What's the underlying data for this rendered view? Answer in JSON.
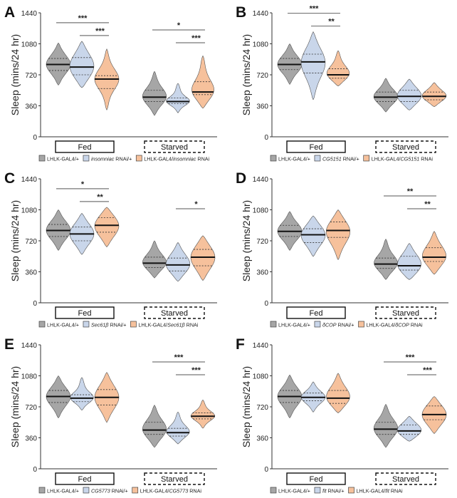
{
  "colors": {
    "control": "#a6a6a6",
    "rnai_ctrl": "#c9d6ea",
    "experimental": "#f6c19c",
    "axis": "#333333",
    "sig": "#777777"
  },
  "chart_data": [
    {
      "panel": "A",
      "type": "violin",
      "ylabel": "Sleep (mins/24 hr)",
      "ylim": [
        0,
        1440
      ],
      "yticks": [
        0,
        360,
        720,
        1080,
        1440
      ],
      "groups": [
        "Fed",
        "Starved"
      ],
      "legend": [
        {
          "text": "LHLK-GAL4/+"
        },
        {
          "italic": "insomniac",
          "text": " RNAi/+"
        },
        {
          "text": "LHLK-GAL4/",
          "italic": "insomniac",
          "post": " RNAi"
        }
      ],
      "violins": [
        {
          "group": "Fed",
          "series": 0,
          "median": 840,
          "q1": 770,
          "q3": 910,
          "min": 600,
          "max": 1090
        },
        {
          "group": "Fed",
          "series": 1,
          "median": 810,
          "q1": 720,
          "q3": 920,
          "min": 570,
          "max": 1110
        },
        {
          "group": "Fed",
          "series": 2,
          "median": 670,
          "q1": 560,
          "q3": 710,
          "min": 310,
          "max": 1020
        },
        {
          "group": "Starved",
          "series": 0,
          "median": 460,
          "q1": 410,
          "q3": 540,
          "min": 250,
          "max": 760
        },
        {
          "group": "Starved",
          "series": 1,
          "median": 410,
          "q1": 385,
          "q3": 450,
          "min": 280,
          "max": 620
        },
        {
          "group": "Starved",
          "series": 2,
          "median": 520,
          "q1": 490,
          "q3": 640,
          "min": 330,
          "max": 940
        }
      ],
      "significance": [
        {
          "group": "Fed",
          "from": 0,
          "to": 2,
          "label": "***"
        },
        {
          "group": "Fed",
          "from": 1,
          "to": 2,
          "label": "***"
        },
        {
          "group": "Starved",
          "from": 0,
          "to": 2,
          "label": "*"
        },
        {
          "group": "Starved",
          "from": 1,
          "to": 2,
          "label": "***"
        }
      ]
    },
    {
      "panel": "B",
      "type": "violin",
      "ylabel": "Sleep (mins/24 hr)",
      "ylim": [
        0,
        1440
      ],
      "yticks": [
        0,
        360,
        720,
        1080,
        1440
      ],
      "groups": [
        "Fed",
        "Starved"
      ],
      "legend": [
        {
          "text": "LHLK-GAL4/+"
        },
        {
          "italic": "CG5151",
          "text": " RNAi/+"
        },
        {
          "text": "LHLK-GAL4/",
          "italic": "CG5151",
          "post": " RNAi"
        }
      ],
      "violins": [
        {
          "group": "Fed",
          "series": 0,
          "median": 840,
          "q1": 780,
          "q3": 910,
          "min": 610,
          "max": 1080
        },
        {
          "group": "Fed",
          "series": 1,
          "median": 870,
          "q1": 740,
          "q3": 960,
          "min": 430,
          "max": 1220
        },
        {
          "group": "Fed",
          "series": 2,
          "median": 720,
          "q1": 680,
          "q3": 790,
          "min": 590,
          "max": 1000
        },
        {
          "group": "Starved",
          "series": 0,
          "median": 460,
          "q1": 410,
          "q3": 520,
          "min": 290,
          "max": 680
        },
        {
          "group": "Starved",
          "series": 1,
          "median": 470,
          "q1": 410,
          "q3": 540,
          "min": 310,
          "max": 670
        },
        {
          "group": "Starved",
          "series": 2,
          "median": 470,
          "q1": 430,
          "q3": 520,
          "min": 350,
          "max": 630
        }
      ],
      "significance": [
        {
          "group": "Fed",
          "from": 0,
          "to": 2,
          "label": "***"
        },
        {
          "group": "Fed",
          "from": 1,
          "to": 2,
          "label": "**"
        }
      ]
    },
    {
      "panel": "C",
      "type": "violin",
      "ylabel": "Sleep (mins/24 hr)",
      "ylim": [
        0,
        1440
      ],
      "yticks": [
        0,
        360,
        720,
        1080,
        1440
      ],
      "groups": [
        "Fed",
        "Starved"
      ],
      "legend": [
        {
          "text": "LHLK-GAL4/+"
        },
        {
          "italic": "Sec61β",
          "text": " RNAi/+"
        },
        {
          "text": "LHLK-GAL4/",
          "italic": "Sec61β",
          "post": " RNAi"
        }
      ],
      "violins": [
        {
          "group": "Fed",
          "series": 0,
          "median": 840,
          "q1": 770,
          "q3": 910,
          "min": 610,
          "max": 1080
        },
        {
          "group": "Fed",
          "series": 1,
          "median": 800,
          "q1": 720,
          "q3": 880,
          "min": 560,
          "max": 1040
        },
        {
          "group": "Fed",
          "series": 2,
          "median": 900,
          "q1": 820,
          "q3": 990,
          "min": 650,
          "max": 1110
        },
        {
          "group": "Starved",
          "series": 0,
          "median": 460,
          "q1": 410,
          "q3": 530,
          "min": 290,
          "max": 720
        },
        {
          "group": "Starved",
          "series": 1,
          "median": 440,
          "q1": 370,
          "q3": 520,
          "min": 250,
          "max": 700
        },
        {
          "group": "Starved",
          "series": 2,
          "median": 530,
          "q1": 430,
          "q3": 620,
          "min": 260,
          "max": 780
        }
      ],
      "significance": [
        {
          "group": "Fed",
          "from": 0,
          "to": 2,
          "label": "*"
        },
        {
          "group": "Fed",
          "from": 1,
          "to": 2,
          "label": "**"
        },
        {
          "group": "Starved",
          "from": 1,
          "to": 2,
          "label": "*"
        }
      ]
    },
    {
      "panel": "D",
      "type": "violin",
      "ylabel": "Sleep (mins/24 hr)",
      "ylim": [
        0,
        1440
      ],
      "yticks": [
        0,
        360,
        720,
        1080,
        1440
      ],
      "groups": [
        "Fed",
        "Starved"
      ],
      "legend": [
        {
          "text": "LHLK-GAL4/+"
        },
        {
          "italic": "δCOP",
          "text": " RNAi/+"
        },
        {
          "text": "LHLK-GAL4/",
          "italic": "δCOP",
          "post": " RNAi"
        }
      ],
      "violins": [
        {
          "group": "Fed",
          "series": 0,
          "median": 830,
          "q1": 770,
          "q3": 900,
          "min": 610,
          "max": 1060
        },
        {
          "group": "Fed",
          "series": 1,
          "median": 790,
          "q1": 700,
          "q3": 860,
          "min": 540,
          "max": 1010
        },
        {
          "group": "Fed",
          "series": 2,
          "median": 840,
          "q1": 760,
          "q3": 940,
          "min": 500,
          "max": 1080
        },
        {
          "group": "Starved",
          "series": 0,
          "median": 450,
          "q1": 400,
          "q3": 520,
          "min": 270,
          "max": 740
        },
        {
          "group": "Starved",
          "series": 1,
          "median": 430,
          "q1": 380,
          "q3": 540,
          "min": 270,
          "max": 690
        },
        {
          "group": "Starved",
          "series": 2,
          "median": 530,
          "q1": 480,
          "q3": 640,
          "min": 330,
          "max": 830
        }
      ],
      "significance": [
        {
          "group": "Starved",
          "from": 0,
          "to": 2,
          "label": "**"
        },
        {
          "group": "Starved",
          "from": 1,
          "to": 2,
          "label": "**"
        }
      ]
    },
    {
      "panel": "E",
      "type": "violin",
      "ylabel": "Sleep (mins/24 hr)",
      "ylim": [
        0,
        1440
      ],
      "yticks": [
        0,
        360,
        720,
        1080,
        1440
      ],
      "groups": [
        "Fed",
        "Starved"
      ],
      "legend": [
        {
          "text": "LHLK-GAL4/+"
        },
        {
          "italic": "CG5773",
          "text": " RNAi/+"
        },
        {
          "text": "LHLK-GAL4/",
          "italic": "CG5773",
          "post": " RNAi"
        }
      ],
      "violins": [
        {
          "group": "Fed",
          "series": 0,
          "median": 840,
          "q1": 770,
          "q3": 910,
          "min": 590,
          "max": 1080
        },
        {
          "group": "Fed",
          "series": 1,
          "median": 820,
          "q1": 780,
          "q3": 860,
          "min": 680,
          "max": 1060
        },
        {
          "group": "Fed",
          "series": 2,
          "median": 830,
          "q1": 740,
          "q3": 920,
          "min": 540,
          "max": 1120
        },
        {
          "group": "Starved",
          "series": 0,
          "median": 450,
          "q1": 400,
          "q3": 540,
          "min": 250,
          "max": 740
        },
        {
          "group": "Starved",
          "series": 1,
          "median": 420,
          "q1": 380,
          "q3": 470,
          "min": 290,
          "max": 660
        },
        {
          "group": "Starved",
          "series": 2,
          "median": 610,
          "q1": 580,
          "q3": 650,
          "min": 470,
          "max": 800
        }
      ],
      "significance": [
        {
          "group": "Starved",
          "from": 0,
          "to": 2,
          "label": "***"
        },
        {
          "group": "Starved",
          "from": 1,
          "to": 2,
          "label": "***"
        }
      ]
    },
    {
      "panel": "F",
      "type": "violin",
      "ylabel": "Sleep (mins/24 hr)",
      "ylim": [
        0,
        1440
      ],
      "yticks": [
        0,
        360,
        720,
        1080,
        1440
      ],
      "groups": [
        "Fed",
        "Starved"
      ],
      "legend": [
        {
          "text": "LHLK-GAL4/+"
        },
        {
          "italic": "fit",
          "text": " RNAi/+"
        },
        {
          "text": "LHLK-GAL4/",
          "italic": "fit",
          "post": " RNAi"
        }
      ],
      "violins": [
        {
          "group": "Fed",
          "series": 0,
          "median": 840,
          "q1": 770,
          "q3": 910,
          "min": 590,
          "max": 1090
        },
        {
          "group": "Fed",
          "series": 1,
          "median": 830,
          "q1": 790,
          "q3": 880,
          "min": 660,
          "max": 1010
        },
        {
          "group": "Fed",
          "series": 2,
          "median": 820,
          "q1": 760,
          "q3": 910,
          "min": 650,
          "max": 1110
        },
        {
          "group": "Starved",
          "series": 0,
          "median": 460,
          "q1": 400,
          "q3": 540,
          "min": 250,
          "max": 750
        },
        {
          "group": "Starved",
          "series": 1,
          "median": 440,
          "q1": 400,
          "q3": 510,
          "min": 320,
          "max": 610
        },
        {
          "group": "Starved",
          "series": 2,
          "median": 630,
          "q1": 570,
          "q3": 730,
          "min": 410,
          "max": 840
        }
      ],
      "significance": [
        {
          "group": "Starved",
          "from": 0,
          "to": 2,
          "label": "***"
        },
        {
          "group": "Starved",
          "from": 1,
          "to": 2,
          "label": "***"
        }
      ]
    }
  ]
}
